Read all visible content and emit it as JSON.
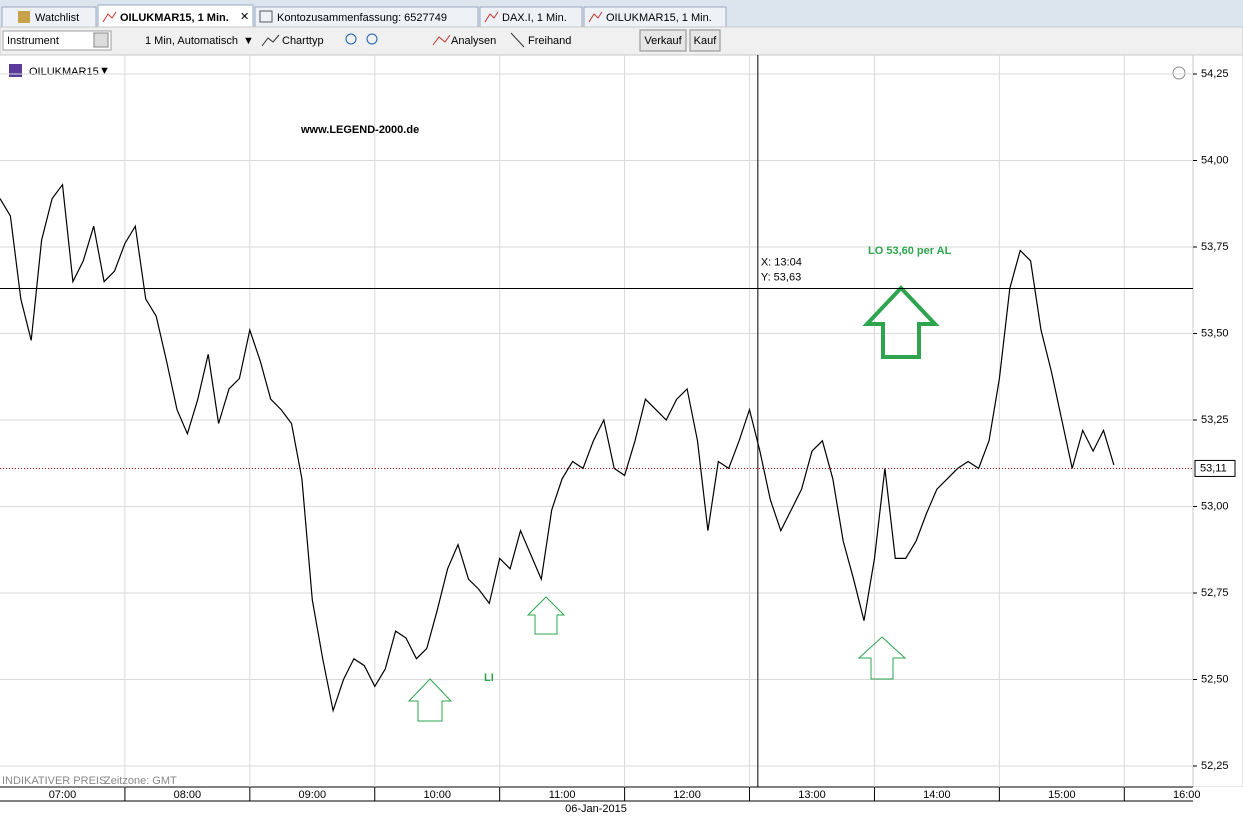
{
  "tabs": [
    "Watchlist",
    "OILUKMAR15, 1 Min.",
    "Kontozusammenfassung: 6527749",
    "DAX.I, 1 Min.",
    "OILUKMAR15, 1 Min."
  ],
  "toolbar": {
    "instrument": "Instrument",
    "interval": "1 Min, Automatisch",
    "charttype": "Charttyp",
    "analysis": "Analysen",
    "freehand": "Freihand",
    "sell": "Verkauf",
    "buy": "Kauf"
  },
  "chart_data": {
    "type": "line",
    "instrument": "OILUKMAR15",
    "color": "#000000",
    "x": [
      "07:00",
      "07:05",
      "07:10",
      "07:15",
      "07:20",
      "07:25",
      "07:30",
      "07:35",
      "07:40",
      "07:45",
      "07:50",
      "07:55",
      "08:00",
      "08:05",
      "08:10",
      "08:15",
      "08:20",
      "08:25",
      "08:30",
      "08:35",
      "08:40",
      "08:45",
      "08:50",
      "08:55",
      "09:00",
      "09:05",
      "09:10",
      "09:15",
      "09:20",
      "09:25",
      "09:30",
      "09:35",
      "09:40",
      "09:45",
      "09:50",
      "09:55",
      "10:00",
      "10:05",
      "10:10",
      "10:15",
      "10:20",
      "10:25",
      "10:30",
      "10:35",
      "10:40",
      "10:45",
      "10:50",
      "10:55",
      "11:00",
      "11:05",
      "11:10",
      "11:15",
      "11:20",
      "11:25",
      "11:30",
      "11:35",
      "11:40",
      "11:45",
      "11:50",
      "11:55",
      "12:00",
      "12:05",
      "12:10",
      "12:15",
      "12:20",
      "12:25",
      "12:30",
      "12:35",
      "12:40",
      "12:45",
      "12:50",
      "12:55",
      "13:00",
      "13:05",
      "13:10",
      "13:15",
      "13:20",
      "13:25",
      "13:30",
      "13:35",
      "13:40",
      "13:45",
      "13:50",
      "13:55",
      "14:00",
      "14:05",
      "14:10",
      "14:15",
      "14:20",
      "14:25",
      "14:30",
      "14:35",
      "14:40",
      "14:45",
      "14:50",
      "14:55",
      "15:00",
      "15:05",
      "15:10",
      "15:15",
      "15:20",
      "15:25",
      "15:30",
      "15:35",
      "15:40",
      "15:45",
      "15:50",
      "15:55"
    ],
    "values": [
      53.89,
      53.84,
      53.6,
      53.48,
      53.77,
      53.89,
      53.93,
      53.65,
      53.71,
      53.81,
      53.65,
      53.68,
      53.76,
      53.81,
      53.6,
      53.55,
      53.42,
      53.28,
      53.21,
      53.31,
      53.44,
      53.24,
      53.34,
      53.37,
      53.51,
      53.42,
      53.31,
      53.28,
      53.24,
      53.08,
      52.73,
      52.56,
      52.41,
      52.5,
      52.56,
      52.54,
      52.48,
      52.53,
      52.64,
      52.62,
      52.56,
      52.59,
      52.7,
      52.82,
      52.89,
      52.79,
      52.76,
      52.72,
      52.85,
      52.82,
      52.93,
      52.86,
      52.79,
      52.99,
      53.08,
      53.13,
      53.11,
      53.19,
      53.25,
      53.11,
      53.09,
      53.19,
      53.31,
      53.28,
      53.25,
      53.31,
      53.34,
      53.19,
      52.93,
      53.13,
      53.11,
      53.19,
      53.28,
      53.16,
      53.02,
      52.93,
      52.99,
      53.05,
      53.16,
      53.19,
      53.08,
      52.9,
      52.79,
      52.67,
      52.85,
      53.11,
      52.85,
      52.85,
      52.9,
      52.98,
      53.05,
      53.08,
      53.11,
      53.13,
      53.11,
      53.19,
      53.37,
      53.63,
      53.74,
      53.71,
      53.51,
      53.39,
      53.25,
      53.11,
      53.22,
      53.16,
      53.22,
      53.12
    ],
    "xlim": [
      "07:00",
      "16:33"
    ],
    "xticks": [
      "07:00",
      "08:00",
      "09:00",
      "10:00",
      "11:00",
      "12:00",
      "13:00",
      "14:00",
      "15:00",
      "16:00"
    ],
    "ylim": [
      52.21,
      54.36
    ],
    "yticks": [
      {
        "value": 54.25,
        "label": "54,25"
      },
      {
        "value": 54,
        "label": "54,00"
      },
      {
        "value": 53.75,
        "label": "53,75"
      },
      {
        "value": 53.5,
        "label": "53,50"
      },
      {
        "value": 53.25,
        "label": "53,25"
      },
      {
        "value": 53,
        "label": "53,00"
      },
      {
        "value": 52.75,
        "label": "52,75"
      },
      {
        "value": 52.5,
        "label": "52,50"
      },
      {
        "value": 52.25,
        "label": "52,25"
      }
    ],
    "grid": true,
    "price_line": {
      "value": 53.11,
      "label": "53,11"
    },
    "crosshair": {
      "x": "13:04",
      "y": 53.63,
      "x_label": "X: 13:04",
      "y_label": "Y: 53,63"
    },
    "annotations": [
      "www.LEGEND-2000.de",
      "LO 53,60 per AL",
      "LI"
    ],
    "footer": "INDIKATIVER PREIS",
    "timezone": "Zeitzone: GMT",
    "date": "06-Jan-2015"
  }
}
